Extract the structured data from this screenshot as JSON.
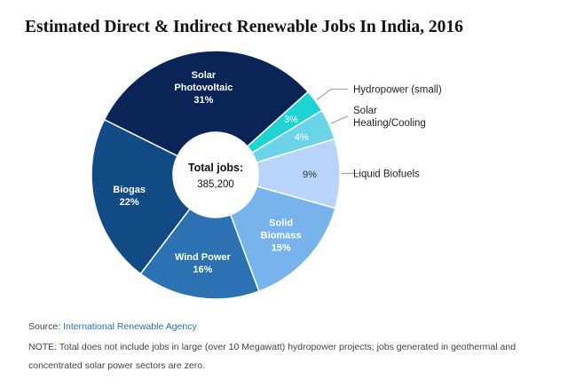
{
  "chart_data": {
    "type": "pie",
    "title": "Estimated Direct & Indirect Renewable Jobs In India, 2016",
    "center_label": "Total jobs:",
    "center_value": "385,200",
    "slices": [
      {
        "name": "Hydropower (small)",
        "lines": [
          "Hydropower (small)"
        ],
        "label_outside": true,
        "value": 3,
        "pct_label": "3%",
        "color": "#1fd3d3"
      },
      {
        "name": "Solar Heating/Cooling",
        "lines": [
          "Solar",
          "Heating/Cooling"
        ],
        "label_outside": true,
        "value": 4,
        "pct_label": "4%",
        "color": "#6ad5e8"
      },
      {
        "name": "Liquid Biofuels",
        "lines": [
          "Liquid Biofuels"
        ],
        "label_outside": true,
        "value": 9,
        "pct_label": "9%",
        "color": "#b8d4fb"
      },
      {
        "name": "Solid Biomass",
        "lines": [
          "Solid",
          "Biomass"
        ],
        "label_outside": false,
        "value": 15,
        "pct_label": "15%",
        "color": "#78b3ec"
      },
      {
        "name": "Wind Power",
        "lines": [
          "Wind Power"
        ],
        "label_outside": false,
        "value": 16,
        "pct_label": "16%",
        "color": "#2c72b3"
      },
      {
        "name": "Biogas",
        "lines": [
          "Biogas"
        ],
        "label_outside": false,
        "value": 22,
        "pct_label": "22%",
        "color": "#114a85"
      },
      {
        "name": "Solar Photovoltaic",
        "lines": [
          "Solar",
          "Photovoltaic"
        ],
        "label_outside": false,
        "value": 31,
        "pct_label": "31%",
        "color": "#0b2457"
      }
    ],
    "legend": "none"
  },
  "footer": {
    "source_prefix": "Source: ",
    "source_link": "International Renewable Agency",
    "note": "NOTE: Total does not include jobs in large (over 10 Megawatt) hydropower projects; jobs generated in geothermal and concentrated solar power sectors are zero."
  }
}
